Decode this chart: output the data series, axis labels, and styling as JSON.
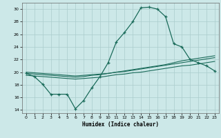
{
  "xlabel": "Humidex (Indice chaleur)",
  "bg_color": "#cce8e8",
  "line_color": "#1a6b5a",
  "grid_color": "#aacccc",
  "xlim": [
    -0.5,
    23.5
  ],
  "ylim": [
    13.5,
    31.0
  ],
  "yticks": [
    14,
    16,
    18,
    20,
    22,
    24,
    26,
    28,
    30
  ],
  "xticks": [
    0,
    1,
    2,
    3,
    4,
    5,
    6,
    7,
    8,
    9,
    10,
    11,
    12,
    13,
    14,
    15,
    16,
    17,
    18,
    19,
    20,
    21,
    22,
    23
  ],
  "curve1_x": [
    0,
    1,
    2,
    3,
    4,
    5,
    6,
    7,
    8,
    9,
    10,
    11,
    12,
    13,
    14,
    15,
    16,
    17,
    18,
    19,
    20,
    21,
    22,
    23
  ],
  "curve1_y": [
    19.8,
    19.3,
    18.1,
    16.5,
    16.5,
    16.5,
    14.2,
    15.5,
    17.5,
    19.3,
    21.5,
    24.8,
    26.3,
    28.0,
    30.2,
    30.3,
    30.0,
    28.8,
    24.5,
    24.0,
    22.0,
    21.5,
    21.0,
    20.2
  ],
  "curve2_x": [
    0,
    1,
    2,
    3,
    4,
    5,
    6,
    7,
    8,
    9,
    10,
    11,
    12,
    13,
    14,
    15,
    16,
    17,
    18,
    19,
    20,
    21,
    22,
    23
  ],
  "curve2_y": [
    20.0,
    19.9,
    19.8,
    19.7,
    19.6,
    19.5,
    19.4,
    19.5,
    19.6,
    19.7,
    19.8,
    20.0,
    20.2,
    20.4,
    20.6,
    20.8,
    21.0,
    21.2,
    21.5,
    21.8,
    22.0,
    22.2,
    22.4,
    22.6
  ],
  "curve3_x": [
    0,
    1,
    2,
    3,
    4,
    5,
    6,
    7,
    8,
    9,
    10,
    11,
    12,
    13,
    14,
    15,
    16,
    17,
    18,
    19,
    20,
    21,
    22,
    23
  ],
  "curve3_y": [
    19.8,
    19.7,
    19.6,
    19.5,
    19.4,
    19.3,
    19.2,
    19.3,
    19.5,
    19.6,
    19.8,
    20.0,
    20.1,
    20.3,
    20.5,
    20.7,
    20.9,
    21.1,
    21.3,
    21.5,
    21.7,
    21.9,
    22.1,
    22.3
  ],
  "curve4_x": [
    0,
    1,
    2,
    3,
    4,
    5,
    6,
    7,
    8,
    9,
    10,
    11,
    12,
    13,
    14,
    15,
    16,
    17,
    18,
    19,
    20,
    21,
    22,
    23
  ],
  "curve4_y": [
    19.5,
    19.4,
    19.3,
    19.2,
    19.1,
    19.0,
    18.9,
    19.0,
    19.1,
    19.2,
    19.4,
    19.6,
    19.7,
    19.9,
    20.0,
    20.2,
    20.4,
    20.6,
    20.8,
    21.0,
    21.1,
    21.3,
    21.5,
    21.7
  ]
}
